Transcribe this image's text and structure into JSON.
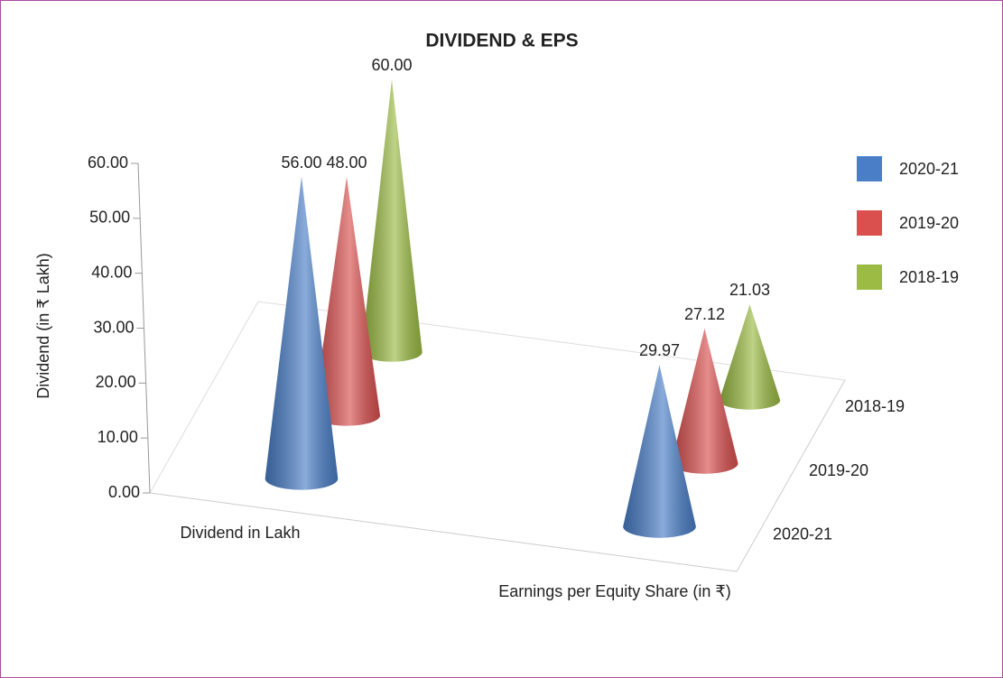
{
  "chart_data": {
    "type": "cone3d",
    "title": "DIVIDEND & EPS",
    "y_label": "Dividend (in ₹ Lakh)",
    "categories": [
      "Dividend in Lakh",
      "Earnings per Equity Share (in ₹)"
    ],
    "series": [
      {
        "name": "2020-21",
        "color": "#4a7fc8",
        "values": [
          56,
          29.97
        ],
        "value_labels": [
          "56.00",
          "29.97"
        ]
      },
      {
        "name": "2019-20",
        "color": "#d9504f",
        "values": [
          48,
          27.12
        ],
        "value_labels": [
          "48.00",
          "27.12"
        ]
      },
      {
        "name": "2018-19",
        "color": "#9bbb44",
        "values": [
          60,
          21.03
        ],
        "value_labels": [
          "60.00",
          "21.03"
        ]
      }
    ],
    "ylim": [
      0,
      60
    ],
    "yticks": [
      {
        "value": 0,
        "label": "0.00"
      },
      {
        "value": 10,
        "label": "10.00"
      },
      {
        "value": 20,
        "label": "20.00"
      },
      {
        "value": 30,
        "label": "30.00"
      },
      {
        "value": 40,
        "label": "40.00"
      },
      {
        "value": 50,
        "label": "50.00"
      },
      {
        "value": 60,
        "label": "60.00"
      }
    ],
    "legend": "right"
  }
}
